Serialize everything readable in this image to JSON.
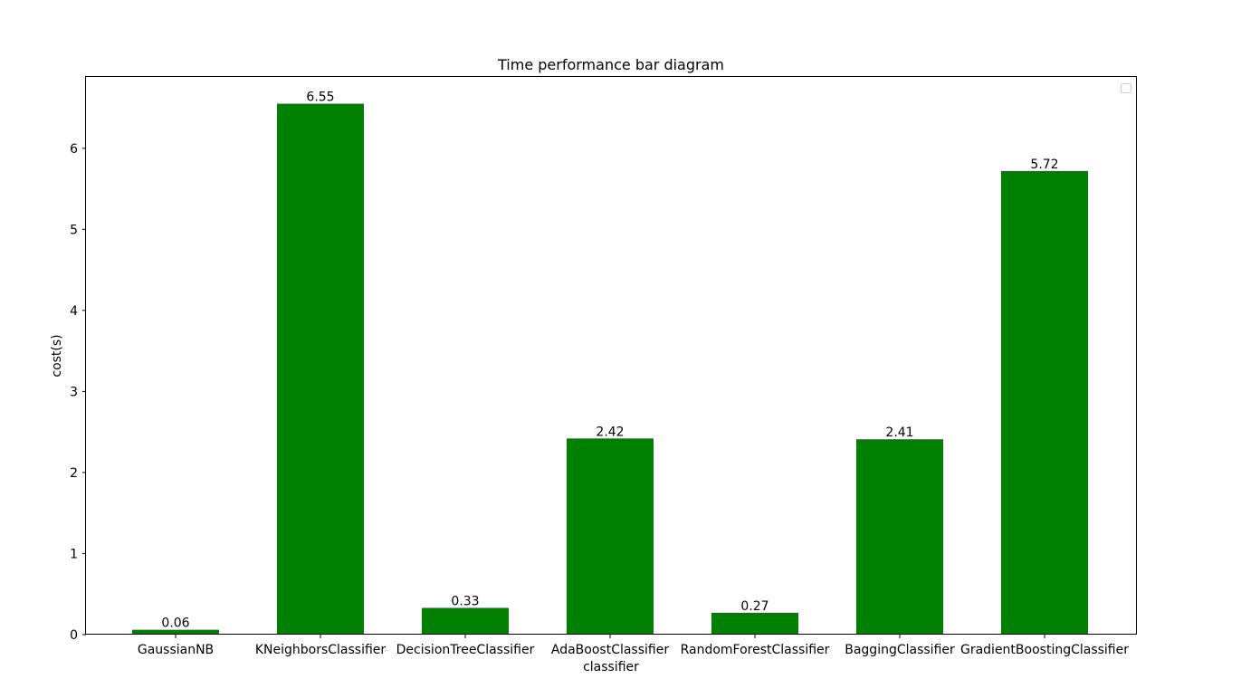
{
  "chart_data": {
    "type": "bar",
    "title": "Time performance bar diagram",
    "xlabel": "classifier",
    "ylabel": "cost(s)",
    "categories": [
      "GaussianNB",
      "KNeighborsClassifier",
      "DecisionTreeClassifier",
      "AdaBoostClassifier",
      "RandomForestClassifier",
      "BaggingClassifier",
      "GradientBoostingClassifier"
    ],
    "values": [
      0.06,
      6.55,
      0.33,
      2.42,
      0.27,
      2.41,
      5.72
    ],
    "value_labels": [
      "0.06",
      "6.55",
      "0.33",
      "2.42",
      "0.27",
      "2.41",
      "5.72"
    ],
    "yticks": [
      0,
      1,
      2,
      3,
      4,
      5,
      6
    ],
    "ylim": [
      0,
      6.88
    ],
    "bar_color": "#008000",
    "grid": false,
    "legend": {
      "placement": "top-right",
      "entries": []
    }
  }
}
